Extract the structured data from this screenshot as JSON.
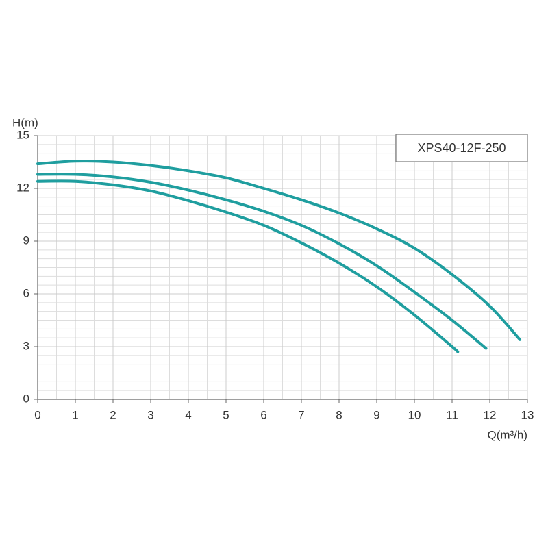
{
  "chart_data": {
    "type": "line",
    "title": "XPS40-12F-250",
    "x_label": "Q(m³/h)",
    "y_label": "H(m)",
    "xlim": [
      0,
      13
    ],
    "ylim": [
      0,
      15
    ],
    "xticks": [
      0,
      1,
      2,
      3,
      4,
      5,
      6,
      7,
      8,
      9,
      10,
      11,
      12,
      13
    ],
    "yticks": [
      0,
      3,
      6,
      9,
      12,
      15
    ],
    "grid": true,
    "series": [
      {
        "color": "#1f9e9f",
        "x": [
          0,
          1,
          2,
          3,
          4,
          5,
          6,
          7,
          8,
          9,
          10,
          11,
          12,
          12.8
        ],
        "values": [
          13.4,
          13.55,
          13.5,
          13.3,
          13.0,
          12.6,
          12.0,
          11.35,
          10.6,
          9.7,
          8.6,
          7.1,
          5.3,
          3.4
        ]
      },
      {
        "color": "#1f9e9f",
        "x": [
          0,
          1,
          2,
          3,
          4,
          5,
          6,
          7,
          8,
          9,
          10,
          11,
          11.9
        ],
        "values": [
          12.8,
          12.8,
          12.65,
          12.35,
          11.9,
          11.35,
          10.7,
          9.9,
          8.85,
          7.6,
          6.1,
          4.5,
          2.9
        ]
      },
      {
        "color": "#1f9e9f",
        "x": [
          0,
          1,
          2,
          3,
          4,
          5,
          6,
          7,
          8,
          9,
          10,
          11,
          11.15
        ],
        "values": [
          12.4,
          12.4,
          12.2,
          11.85,
          11.3,
          10.65,
          9.9,
          8.9,
          7.75,
          6.4,
          4.8,
          3.0,
          2.7
        ]
      }
    ]
  }
}
